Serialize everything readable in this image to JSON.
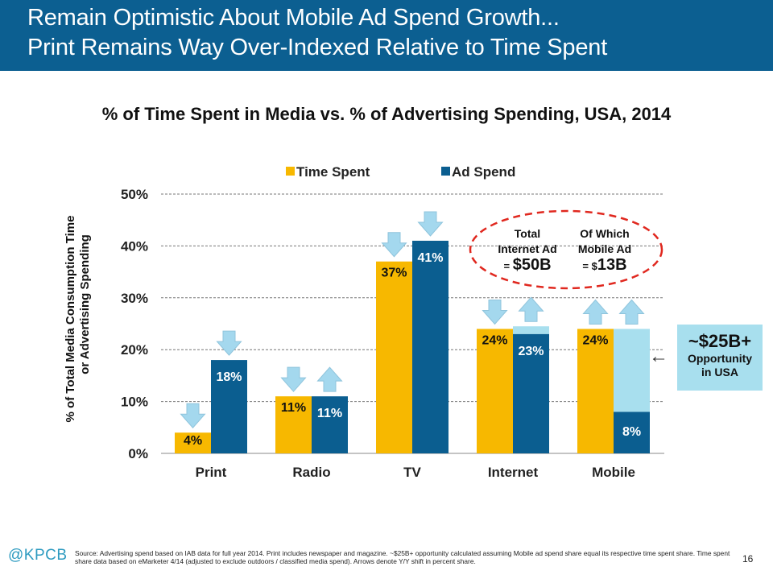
{
  "header": {
    "line1": "Remain Optimistic About Mobile Ad Spend Growth...",
    "line2": "Print Remains Way Over-Indexed Relative to Time Spent"
  },
  "colors": {
    "time_spent": "#f7b800",
    "ad_spend": "#0b5e90",
    "opportunity": "#a8dfee",
    "header_bg": "#0c5f91",
    "callout_ellipse": "#e0281f",
    "arrow": "#a4d8ee"
  },
  "callout": {
    "col1_line1": "Total",
    "col1_line2": "Internet Ad",
    "col1_prefix": "= ",
    "col1_value": "$50B",
    "col2_line1": "Of Which",
    "col2_line2": "Mobile Ad",
    "col2_prefix": "= $",
    "col2_value": "13B"
  },
  "opportunity": {
    "value": "~$25B+",
    "line1": "Opportunity",
    "line2": "in USA",
    "arrow": "←"
  },
  "chart_data": {
    "type": "bar",
    "title": "% of Time Spent in Media vs. % of Advertising Spending, USA, 2014",
    "ylabel_line1": "% of Total Media Consumption Time",
    "ylabel_line2": "or Advertising Spending",
    "ylim": [
      0,
      50
    ],
    "yticks": [
      "0%",
      "10%",
      "20%",
      "30%",
      "40%",
      "50%"
    ],
    "grid": true,
    "legend": "top",
    "categories": [
      "Print",
      "Radio",
      "TV",
      "Internet",
      "Mobile"
    ],
    "series": [
      {
        "name": "Time Spent",
        "values": [
          4,
          11,
          37,
          24,
          24
        ],
        "labels": [
          "4%",
          "11%",
          "37%",
          "24%",
          "24%"
        ],
        "yoy_arrow": [
          "down",
          "down",
          "down",
          "down",
          "up"
        ]
      },
      {
        "name": "Ad Spend",
        "values": [
          18,
          11,
          41,
          23,
          8
        ],
        "labels": [
          "18%",
          "11%",
          "41%",
          "23%",
          "8%"
        ],
        "yoy_arrow": [
          "down",
          "up",
          "down",
          "up",
          "up"
        ]
      }
    ],
    "opportunity_extension": [
      0,
      0,
      0,
      1.5,
      16
    ]
  },
  "footer": {
    "logo": "@KPCB",
    "source": "Source: Advertising spend based on IAB data for full year 2014. Print includes newspaper and magazine. ~$25B+ opportunity calculated assuming Mobile ad spend share equal its respective time spent share. Time spent share data based on eMarketer 4/14 (adjusted to exclude outdoors / classified media spend). Arrows denote Y/Y shift in percent share.",
    "page": "16"
  }
}
